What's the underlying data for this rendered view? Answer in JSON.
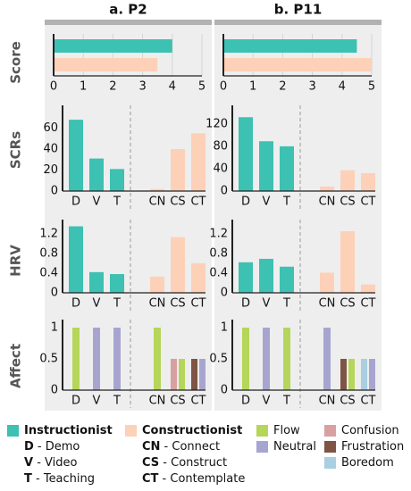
{
  "colors": {
    "instructionist": "#3cc1b2",
    "constructionist": "#fdd0b8",
    "flow": "#b5d65a",
    "neutral": "#a7a5d0",
    "confusion": "#d9a0a2",
    "frustration": "#7e5444",
    "boredom": "#a9cfe0",
    "panel_bg": "#eeeeee",
    "header_bar": "#b2b2b2",
    "grid": "#d4d4d4",
    "axis": "#222222",
    "text": "#111111",
    "divider": "#999999"
  },
  "headers": [
    "a. P2",
    "b. P11"
  ],
  "row_labels": [
    "Score",
    "SCRs",
    "HRV",
    "Affect"
  ],
  "legend": {
    "instructionist": {
      "name": "Instructionist",
      "items": [
        {
          "abbr": "D",
          "text": " - Demo"
        },
        {
          "abbr": "V",
          "text": " - Video"
        },
        {
          "abbr": "T",
          "text": " - Teaching"
        }
      ]
    },
    "constructionist": {
      "name": "Constructionist",
      "items": [
        {
          "abbr": "CN",
          "text": " - Connect"
        },
        {
          "abbr": "CS",
          "text": " - Construct"
        },
        {
          "abbr": "CT",
          "text": " - Contemplate"
        }
      ]
    },
    "affect_col1": [
      "Flow",
      "Neutral"
    ],
    "affect_col2": [
      "Confusion",
      "Frustration",
      "Boredom"
    ]
  },
  "chart_data": [
    {
      "type": "bar",
      "row": "Score",
      "panel": "a. P2",
      "orientation": "horizontal",
      "xlim": [
        0,
        5
      ],
      "ticks": [
        0,
        1,
        2,
        3,
        4,
        5
      ],
      "series": [
        {
          "name": "Instructionist",
          "value": 4
        },
        {
          "name": "Constructionist",
          "value": 3.5
        }
      ]
    },
    {
      "type": "bar",
      "row": "Score",
      "panel": "b. P11",
      "orientation": "horizontal",
      "xlim": [
        0,
        5
      ],
      "ticks": [
        0,
        1,
        2,
        3,
        4,
        5
      ],
      "series": [
        {
          "name": "Instructionist",
          "value": 4.5
        },
        {
          "name": "Constructionist",
          "value": 5
        }
      ]
    },
    {
      "type": "bar",
      "row": "SCRs",
      "panel": "a. P2",
      "categories": [
        "D",
        "V",
        "T",
        "CN",
        "CS",
        "CT"
      ],
      "values": [
        68,
        31,
        21,
        2,
        40,
        55
      ],
      "ylim": [
        0,
        80
      ],
      "ticks": [
        0,
        20,
        40,
        60
      ]
    },
    {
      "type": "bar",
      "row": "SCRs",
      "panel": "b. P11",
      "categories": [
        "D",
        "V",
        "T",
        "CN",
        "CS",
        "CT"
      ],
      "values": [
        132,
        89,
        80,
        8,
        37,
        32
      ],
      "ylim": [
        0,
        150
      ],
      "ticks": [
        0,
        40,
        80,
        120
      ]
    },
    {
      "type": "bar",
      "row": "HRV",
      "panel": "a. P2",
      "categories": [
        "D",
        "V",
        "T",
        "CN",
        "CS",
        "CT"
      ],
      "values": [
        1.35,
        0.42,
        0.38,
        0.33,
        1.13,
        0.6
      ],
      "ylim": [
        0,
        1.45
      ],
      "ticks": [
        0,
        0.4,
        0.8,
        1.2
      ]
    },
    {
      "type": "bar",
      "row": "HRV",
      "panel": "b. P11",
      "categories": [
        "D",
        "V",
        "T",
        "CN",
        "CS",
        "CT"
      ],
      "values": [
        0.62,
        0.69,
        0.53,
        0.41,
        1.25,
        0.17
      ],
      "ylim": [
        0,
        1.45
      ],
      "ticks": [
        0,
        0.4,
        0.8,
        1.2
      ]
    },
    {
      "type": "bar",
      "row": "Affect",
      "panel": "a. P2",
      "categories": [
        "D",
        "V",
        "T",
        "CN",
        "CS",
        "CT"
      ],
      "ylim": [
        0,
        1.1
      ],
      "ticks": [
        0,
        0.5,
        1
      ],
      "bars": [
        {
          "category": "D",
          "state": "Flow",
          "value": 1
        },
        {
          "category": "V",
          "state": "Neutral",
          "value": 1
        },
        {
          "category": "T",
          "state": "Neutral",
          "value": 1
        },
        {
          "category": "CN",
          "state": "Flow",
          "value": 1
        },
        {
          "category": "CS",
          "state": "Confusion",
          "value": 0.5
        },
        {
          "category": "CS",
          "state": "Flow",
          "value": 0.5
        },
        {
          "category": "CT",
          "state": "Frustration",
          "value": 0.5
        },
        {
          "category": "CT",
          "state": "Neutral",
          "value": 0.5
        }
      ]
    },
    {
      "type": "bar",
      "row": "Affect",
      "panel": "b. P11",
      "categories": [
        "D",
        "V",
        "T",
        "CN",
        "CS",
        "CT"
      ],
      "ylim": [
        0,
        1.1
      ],
      "ticks": [
        0,
        0.5,
        1
      ],
      "bars": [
        {
          "category": "D",
          "state": "Flow",
          "value": 1
        },
        {
          "category": "V",
          "state": "Neutral",
          "value": 1
        },
        {
          "category": "T",
          "state": "Flow",
          "value": 1
        },
        {
          "category": "CN",
          "state": "Neutral",
          "value": 1
        },
        {
          "category": "CS",
          "state": "Frustration",
          "value": 0.5
        },
        {
          "category": "CS",
          "state": "Flow",
          "value": 0.5
        },
        {
          "category": "CT",
          "state": "Boredom",
          "value": 0.5
        },
        {
          "category": "CT",
          "state": "Neutral",
          "value": 0.5
        }
      ]
    }
  ]
}
